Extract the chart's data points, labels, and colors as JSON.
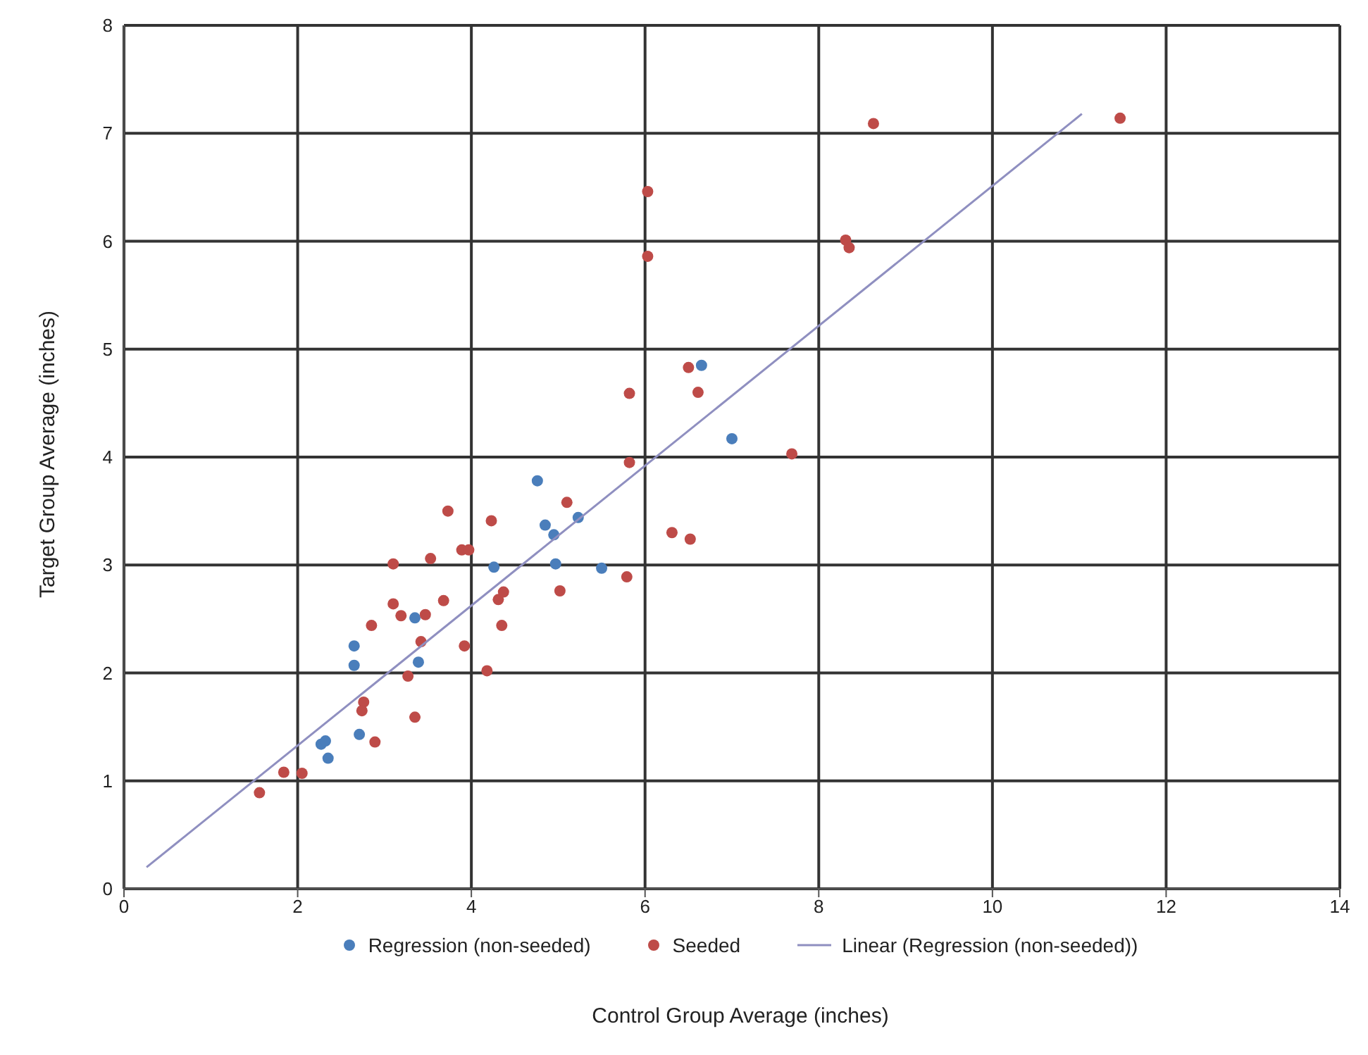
{
  "chart_data": {
    "type": "scatter",
    "xlabel": "Control Group Average (inches)",
    "ylabel": "Target Group Average (inches)",
    "xlim": [
      0,
      14
    ],
    "xticks": [
      0,
      2,
      4,
      6,
      8,
      10,
      12,
      14
    ],
    "ylim": [
      0,
      8
    ],
    "yticks": [
      0,
      1,
      2,
      3,
      4,
      5,
      6,
      7,
      8
    ],
    "grid": true,
    "legend": "bottom",
    "marker": "circle",
    "series": [
      {
        "name": "Regression (non-seeded)",
        "color": "#4a7ebb",
        "x": [
          2.65,
          2.65,
          2.27,
          2.32,
          2.35,
          2.71,
          3.35,
          3.39,
          4.76,
          4.85,
          4.26,
          4.95,
          5.23,
          4.97,
          5.5,
          6.65,
          7.0
        ],
        "values": [
          2.25,
          2.07,
          1.34,
          1.37,
          1.21,
          1.43,
          2.51,
          2.1,
          3.78,
          3.37,
          2.98,
          3.28,
          3.44,
          3.01,
          2.97,
          4.85,
          4.17
        ]
      },
      {
        "name": "Seeded",
        "color": "#be4b48",
        "x": [
          1.56,
          1.84,
          2.05,
          2.76,
          2.74,
          2.89,
          2.85,
          3.1,
          3.19,
          3.1,
          3.27,
          3.35,
          3.42,
          3.47,
          3.53,
          3.68,
          3.73,
          3.89,
          3.97,
          3.92,
          4.18,
          4.23,
          4.31,
          4.37,
          4.35,
          5.1,
          5.02,
          5.79,
          5.82,
          5.82,
          6.03,
          6.03,
          6.31,
          6.5,
          6.61,
          6.52,
          7.69,
          8.31,
          8.35,
          8.63,
          11.47
        ],
        "values": [
          0.89,
          1.08,
          1.07,
          1.73,
          1.65,
          1.36,
          2.44,
          2.64,
          2.53,
          3.01,
          1.97,
          1.59,
          2.29,
          2.54,
          3.06,
          2.67,
          3.5,
          3.14,
          3.14,
          2.25,
          2.02,
          3.41,
          2.68,
          2.75,
          2.44,
          3.58,
          2.76,
          2.89,
          3.95,
          4.59,
          6.46,
          5.86,
          3.3,
          4.83,
          4.6,
          3.24,
          4.03,
          6.01,
          5.94,
          7.09,
          7.14
        ]
      },
      {
        "name": "Linear (Regression (non-seeded))",
        "type": "line",
        "color": "#8f8fc0",
        "marker": "none",
        "x": [
          0.26,
          11.03
        ],
        "values": [
          0.2,
          7.18
        ]
      }
    ]
  }
}
